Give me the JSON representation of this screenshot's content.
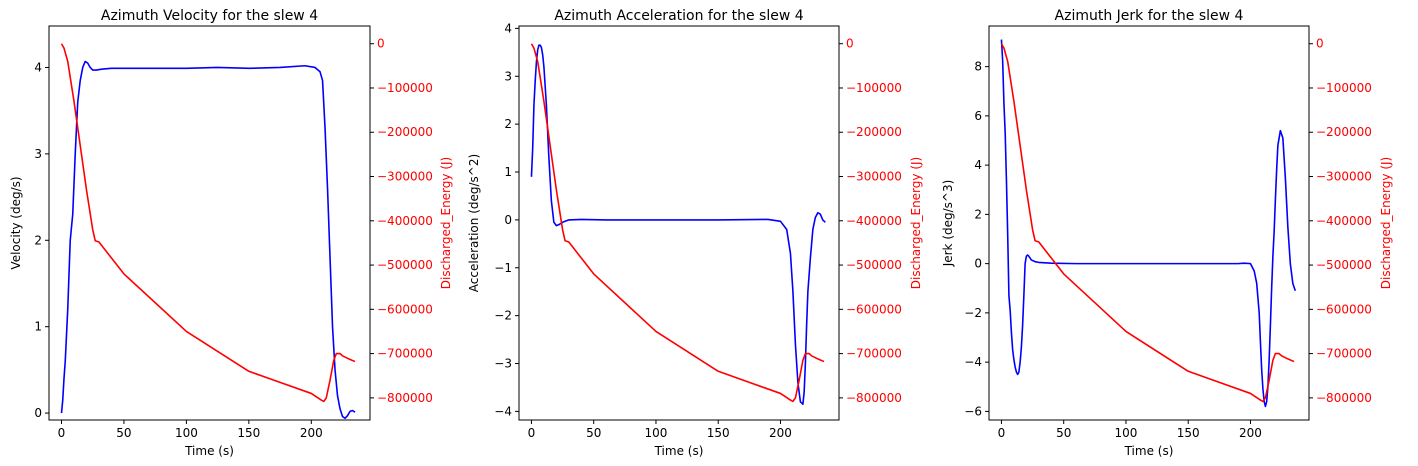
{
  "chart_data": [
    {
      "type": "line",
      "title": "Azimuth Velocity for the slew 4",
      "xlabel": "Time (s)",
      "ylabel": "Velocity (deg/s)",
      "ylabel_right": "Discharged_Energy (J)",
      "xlim": [
        -10,
        247
      ],
      "ylim": [
        -0.08,
        4.48
      ],
      "ylim_right": [
        -850000,
        40000
      ],
      "x_ticks": [
        0,
        50,
        100,
        150,
        200
      ],
      "y_ticks": [
        0,
        1,
        2,
        3,
        4
      ],
      "y_ticks_right": [
        0,
        -100000,
        -200000,
        -300000,
        -400000,
        -500000,
        -600000,
        -700000,
        -800000
      ],
      "grid": false,
      "series": [
        {
          "axis": "left",
          "color": "#0000ff",
          "x": [
            0,
            1,
            2,
            3,
            5,
            7,
            9,
            11,
            13,
            15,
            17,
            19,
            21,
            23,
            25,
            28,
            32,
            40,
            50,
            75,
            100,
            125,
            150,
            175,
            195,
            203,
            207,
            209,
            211,
            213,
            215,
            217,
            219,
            221,
            223,
            225,
            227,
            229,
            231,
            233,
            235
          ],
          "y": [
            0,
            0.15,
            0.4,
            0.6,
            1.2,
            2.0,
            2.3,
            3.0,
            3.6,
            3.85,
            4.0,
            4.07,
            4.05,
            4.0,
            3.97,
            3.97,
            3.98,
            3.99,
            3.99,
            3.99,
            3.99,
            4.0,
            3.99,
            4.0,
            4.02,
            4.0,
            3.95,
            3.85,
            3.3,
            2.6,
            1.8,
            1.0,
            0.5,
            0.2,
            0.05,
            -0.04,
            -0.06,
            -0.03,
            0.02,
            0.03,
            0.01
          ]
        },
        {
          "axis": "right",
          "color": "#ff0000",
          "x": [
            0,
            2,
            5,
            10,
            15,
            20,
            25,
            27,
            30,
            50,
            100,
            150,
            200,
            208,
            210,
            212,
            215,
            218,
            220,
            223,
            225,
            230,
            235
          ],
          "y": [
            0,
            -10000,
            -40000,
            -130000,
            -230000,
            -330000,
            -420000,
            -445000,
            -448000,
            -520000,
            -650000,
            -740000,
            -790000,
            -805000,
            -808000,
            -800000,
            -760000,
            -715000,
            -700000,
            -700000,
            -705000,
            -712000,
            -718000
          ]
        }
      ]
    },
    {
      "type": "line",
      "title": "Azimuth Acceleration for the slew 4",
      "xlabel": "Time (s)",
      "ylabel": "Acceleration (deg/s^2)",
      "ylabel_right": "Discharged_Energy (J)",
      "xlim": [
        -10,
        247
      ],
      "ylim": [
        -4.18,
        4.05
      ],
      "ylim_right": [
        -850000,
        40000
      ],
      "x_ticks": [
        0,
        50,
        100,
        150,
        200
      ],
      "y_ticks": [
        4,
        3,
        2,
        1,
        0,
        -1,
        -2,
        -3,
        -4
      ],
      "y_ticks_right": [
        0,
        -100000,
        -200000,
        -300000,
        -400000,
        -500000,
        -600000,
        -700000,
        -800000
      ],
      "grid": false,
      "series": [
        {
          "axis": "left",
          "color": "#0000ff",
          "x": [
            0,
            1,
            2,
            3,
            4,
            5,
            6,
            7,
            8,
            9,
            10,
            12,
            14,
            16,
            18,
            20,
            22,
            25,
            30,
            40,
            60,
            100,
            150,
            190,
            200,
            205,
            208,
            210,
            212,
            214,
            216,
            218,
            219,
            220,
            221,
            222,
            224,
            226,
            228,
            230,
            232,
            234,
            236
          ],
          "y": [
            0.9,
            1.5,
            2.4,
            2.9,
            3.3,
            3.55,
            3.65,
            3.65,
            3.6,
            3.45,
            3.2,
            2.4,
            1.3,
            0.4,
            -0.05,
            -0.12,
            -0.1,
            -0.05,
            0.0,
            0.01,
            0.0,
            0.0,
            0.0,
            0.01,
            -0.03,
            -0.2,
            -0.7,
            -1.5,
            -2.6,
            -3.4,
            -3.8,
            -3.85,
            -3.6,
            -3.0,
            -2.2,
            -1.5,
            -0.8,
            -0.2,
            0.05,
            0.15,
            0.12,
            0.0,
            -0.05
          ]
        },
        {
          "axis": "right",
          "color": "#ff0000",
          "x": [
            0,
            2,
            5,
            10,
            15,
            20,
            25,
            27,
            30,
            50,
            100,
            150,
            200,
            208,
            210,
            212,
            215,
            218,
            220,
            223,
            225,
            230,
            235
          ],
          "y": [
            0,
            -10000,
            -40000,
            -130000,
            -230000,
            -330000,
            -420000,
            -445000,
            -448000,
            -520000,
            -650000,
            -740000,
            -790000,
            -805000,
            -808000,
            -800000,
            -760000,
            -715000,
            -700000,
            -700000,
            -705000,
            -712000,
            -718000
          ]
        }
      ]
    },
    {
      "type": "line",
      "title": "Azimuth Jerk for the slew 4",
      "xlabel": "Time (s)",
      "ylabel": "Jerk (deg/s^3)",
      "ylabel_right": "Discharged_Energy (J)",
      "xlim": [
        -10,
        247
      ],
      "ylim": [
        -6.35,
        9.65
      ],
      "ylim_right": [
        -850000,
        40000
      ],
      "x_ticks": [
        0,
        50,
        100,
        150,
        200
      ],
      "y_ticks": [
        8,
        6,
        4,
        2,
        0,
        -2,
        -4,
        -6
      ],
      "y_ticks_right": [
        0,
        -100000,
        -200000,
        -300000,
        -400000,
        -500000,
        -600000,
        -700000,
        -800000
      ],
      "grid": false,
      "series": [
        {
          "axis": "left",
          "color": "#0000ff",
          "x": [
            0,
            1,
            2,
            3,
            4,
            5,
            6,
            7,
            8,
            9,
            10,
            11,
            12,
            13,
            14,
            15,
            16,
            17,
            18,
            19,
            20,
            21,
            22,
            24,
            27,
            30,
            40,
            60,
            100,
            150,
            190,
            195,
            200,
            203,
            205,
            207,
            208,
            209,
            210,
            211,
            212,
            213,
            214,
            215,
            216,
            217,
            218,
            219,
            220,
            221,
            222,
            224,
            226,
            228,
            230,
            232,
            234,
            236
          ],
          "y": [
            9.1,
            8.2,
            6.5,
            5.3,
            3.4,
            1.2,
            -1.3,
            -1.9,
            -2.8,
            -3.5,
            -3.9,
            -4.2,
            -4.4,
            -4.5,
            -4.4,
            -4.0,
            -3.4,
            -2.5,
            -1.3,
            0.0,
            0.3,
            0.35,
            0.3,
            0.15,
            0.08,
            0.05,
            0.02,
            0.0,
            0.0,
            0.0,
            0.0,
            0.02,
            0.0,
            -0.3,
            -0.8,
            -2.0,
            -3.2,
            -4.3,
            -5.1,
            -5.6,
            -5.8,
            -5.6,
            -5.0,
            -3.9,
            -2.5,
            -1.0,
            0.3,
            1.3,
            2.6,
            3.8,
            4.8,
            5.4,
            5.1,
            3.5,
            1.5,
            0.0,
            -0.8,
            -1.1
          ]
        },
        {
          "axis": "right",
          "color": "#ff0000",
          "x": [
            0,
            2,
            5,
            10,
            15,
            20,
            25,
            27,
            30,
            50,
            100,
            150,
            200,
            208,
            210,
            212,
            215,
            218,
            220,
            223,
            225,
            230,
            235
          ],
          "y": [
            0,
            -10000,
            -40000,
            -130000,
            -230000,
            -330000,
            -420000,
            -445000,
            -448000,
            -520000,
            -650000,
            -740000,
            -790000,
            -805000,
            -808000,
            -800000,
            -760000,
            -715000,
            -700000,
            -700000,
            -705000,
            -712000,
            -718000
          ]
        }
      ]
    }
  ]
}
